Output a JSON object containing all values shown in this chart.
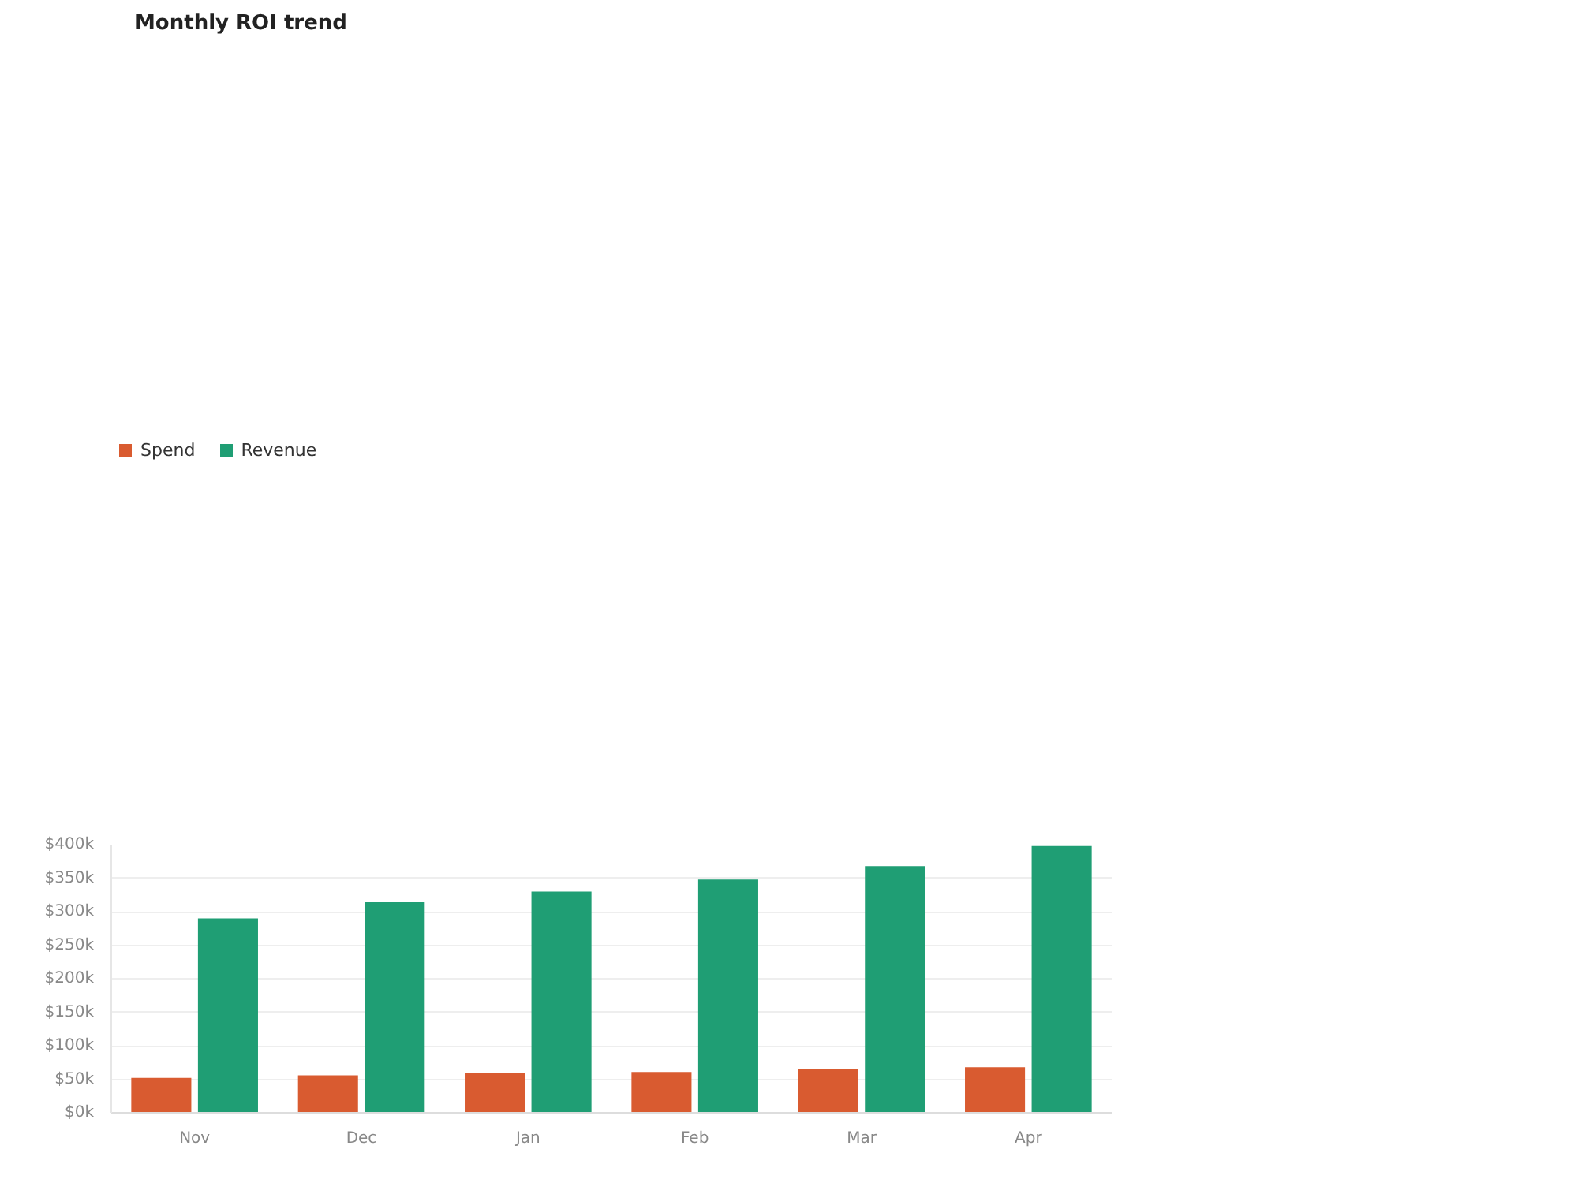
{
  "chart_data": {
    "type": "bar",
    "title": "Monthly ROI trend",
    "categories": [
      "Nov",
      "Dec",
      "Jan",
      "Feb",
      "Mar",
      "Apr"
    ],
    "series": [
      {
        "name": "Spend",
        "color": "#d95b30",
        "values": [
          52,
          56,
          59,
          61,
          65,
          68
        ]
      },
      {
        "name": "Revenue",
        "color": "#1f9e74",
        "values": [
          290,
          314,
          330,
          348,
          368,
          398
        ]
      }
    ],
    "ylim": [
      0,
      400
    ],
    "yticks": [
      {
        "value": 0,
        "label": "$0k"
      },
      {
        "value": 50,
        "label": "$50k"
      },
      {
        "value": 100,
        "label": "$100k"
      },
      {
        "value": 150,
        "label": "$150k"
      },
      {
        "value": 200,
        "label": "$200k"
      },
      {
        "value": 250,
        "label": "$250k"
      },
      {
        "value": 300,
        "label": "$300k"
      },
      {
        "value": 350,
        "label": "$350k"
      },
      {
        "value": 400,
        "label": "$400k"
      }
    ],
    "grid": "y",
    "legend": "top left"
  }
}
